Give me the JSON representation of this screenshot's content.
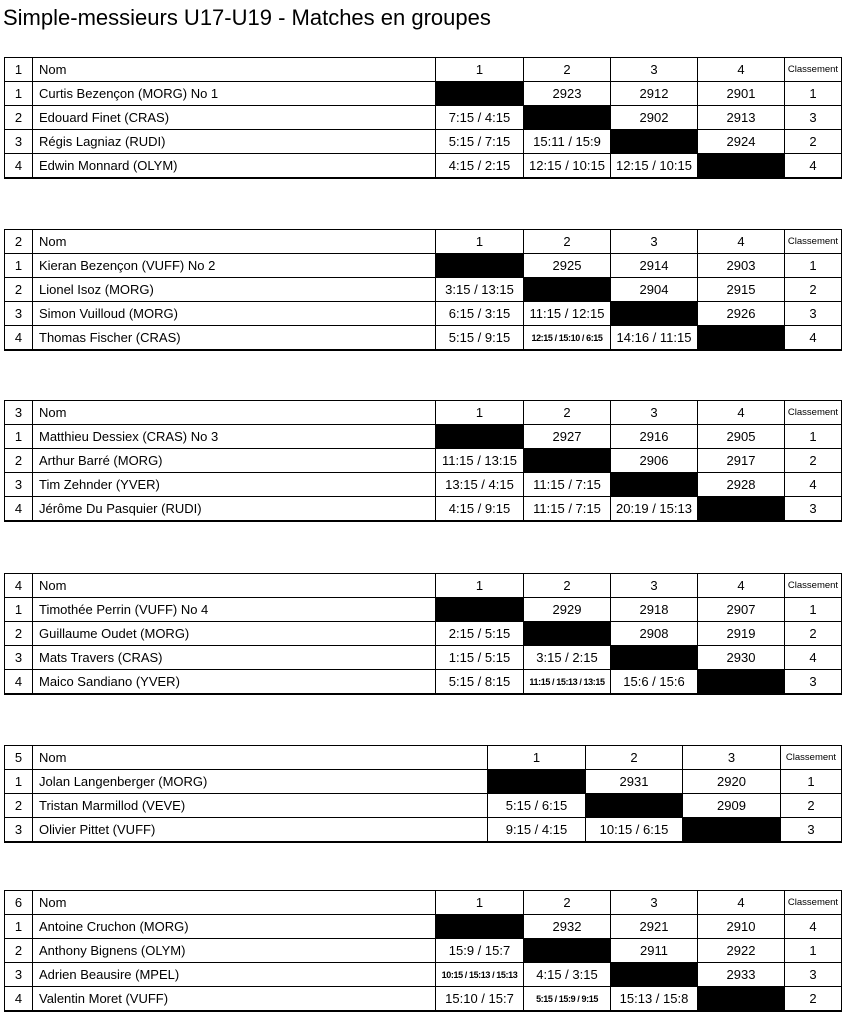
{
  "title": "Simple-messieurs U17-U19 - Matches en groupes",
  "header": {
    "nom": "Nom",
    "classement": "Classement"
  },
  "groups": [
    {
      "group_no": "1",
      "match_cols": [
        "1",
        "2",
        "3",
        "4"
      ],
      "rows": [
        {
          "pos": "1",
          "name": "Curtis Bezençon (MORG) No 1",
          "results": [
            {
              "black": true
            },
            {
              "v": "2923"
            },
            {
              "v": "2912"
            },
            {
              "v": "2901"
            }
          ],
          "classement": "1"
        },
        {
          "pos": "2",
          "name": "Edouard Finet (CRAS)",
          "results": [
            {
              "v": "7:15 / 4:15"
            },
            {
              "black": true
            },
            {
              "v": "2902"
            },
            {
              "v": "2913"
            }
          ],
          "classement": "3"
        },
        {
          "pos": "3",
          "name": "Régis Lagniaz (RUDI)",
          "results": [
            {
              "v": "5:15 / 7:15"
            },
            {
              "v": "15:11 / 15:9"
            },
            {
              "black": true
            },
            {
              "v": "2924"
            }
          ],
          "classement": "2"
        },
        {
          "pos": "4",
          "name": "Edwin Monnard (OLYM)",
          "results": [
            {
              "v": "4:15 / 2:15"
            },
            {
              "v": "12:15 / 10:15"
            },
            {
              "v": "12:15 / 10:15"
            },
            {
              "black": true
            }
          ],
          "classement": "4"
        }
      ]
    },
    {
      "group_no": "2",
      "match_cols": [
        "1",
        "2",
        "3",
        "4"
      ],
      "rows": [
        {
          "pos": "1",
          "name": "Kieran Bezençon (VUFF) No 2",
          "results": [
            {
              "black": true
            },
            {
              "v": "2925"
            },
            {
              "v": "2914"
            },
            {
              "v": "2903"
            }
          ],
          "classement": "1"
        },
        {
          "pos": "2",
          "name": "Lionel Isoz (MORG)",
          "results": [
            {
              "v": "3:15 / 13:15"
            },
            {
              "black": true
            },
            {
              "v": "2904"
            },
            {
              "v": "2915"
            }
          ],
          "classement": "2"
        },
        {
          "pos": "3",
          "name": "Simon Vuilloud (MORG)",
          "results": [
            {
              "v": "6:15 / 3:15"
            },
            {
              "v": "11:15 / 12:15"
            },
            {
              "black": true
            },
            {
              "v": "2926"
            }
          ],
          "classement": "3"
        },
        {
          "pos": "4",
          "name": "Thomas Fischer (CRAS)",
          "results": [
            {
              "v": "5:15 / 9:15"
            },
            {
              "v": "12:15 / 15:10 / 6:15",
              "small": true
            },
            {
              "v": "14:16 / 11:15"
            },
            {
              "black": true
            }
          ],
          "classement": "4"
        }
      ]
    },
    {
      "group_no": "3",
      "match_cols": [
        "1",
        "2",
        "3",
        "4"
      ],
      "rows": [
        {
          "pos": "1",
          "name": "Matthieu Dessiex (CRAS) No 3",
          "results": [
            {
              "black": true
            },
            {
              "v": "2927"
            },
            {
              "v": "2916"
            },
            {
              "v": "2905"
            }
          ],
          "classement": "1"
        },
        {
          "pos": "2",
          "name": "Arthur Barré (MORG)",
          "results": [
            {
              "v": "11:15 / 13:15"
            },
            {
              "black": true
            },
            {
              "v": "2906"
            },
            {
              "v": "2917"
            }
          ],
          "classement": "2"
        },
        {
          "pos": "3",
          "name": "Tim Zehnder (YVER)",
          "results": [
            {
              "v": "13:15 / 4:15"
            },
            {
              "v": "11:15 / 7:15"
            },
            {
              "black": true
            },
            {
              "v": "2928"
            }
          ],
          "classement": "4"
        },
        {
          "pos": "4",
          "name": "Jérôme Du Pasquier (RUDI)",
          "results": [
            {
              "v": "4:15 / 9:15"
            },
            {
              "v": "11:15 / 7:15"
            },
            {
              "v": "20:19 / 15:13"
            },
            {
              "black": true
            }
          ],
          "classement": "3"
        }
      ]
    },
    {
      "group_no": "4",
      "match_cols": [
        "1",
        "2",
        "3",
        "4"
      ],
      "rows": [
        {
          "pos": "1",
          "name": "Timothée Perrin (VUFF) No 4",
          "results": [
            {
              "black": true
            },
            {
              "v": "2929"
            },
            {
              "v": "2918"
            },
            {
              "v": "2907"
            }
          ],
          "classement": "1"
        },
        {
          "pos": "2",
          "name": "Guillaume Oudet (MORG)",
          "results": [
            {
              "v": "2:15 / 5:15"
            },
            {
              "black": true
            },
            {
              "v": "2908"
            },
            {
              "v": "2919"
            }
          ],
          "classement": "2"
        },
        {
          "pos": "3",
          "name": "Mats Travers (CRAS)",
          "results": [
            {
              "v": "1:15 / 5:15"
            },
            {
              "v": "3:15 / 2:15"
            },
            {
              "black": true
            },
            {
              "v": "2930"
            }
          ],
          "classement": "4"
        },
        {
          "pos": "4",
          "name": "Maico Sandiano (YVER)",
          "results": [
            {
              "v": "5:15 / 8:15"
            },
            {
              "v": "11:15 / 15:13 / 13:15",
              "small": true
            },
            {
              "v": "15:6 / 15:6"
            },
            {
              "black": true
            }
          ],
          "classement": "3"
        }
      ]
    },
    {
      "group_no": "5",
      "match_cols": [
        "1",
        "2",
        "3"
      ],
      "rows": [
        {
          "pos": "1",
          "name": "Jolan Langenberger (MORG)",
          "results": [
            {
              "black": true
            },
            {
              "v": "2931"
            },
            {
              "v": "2920"
            }
          ],
          "classement": "1"
        },
        {
          "pos": "2",
          "name": "Tristan Marmillod (VEVE)",
          "results": [
            {
              "v": "5:15 / 6:15"
            },
            {
              "black": true
            },
            {
              "v": "2909"
            }
          ],
          "classement": "2"
        },
        {
          "pos": "3",
          "name": "Olivier Pittet (VUFF)",
          "results": [
            {
              "v": "9:15 / 4:15"
            },
            {
              "v": "10:15 / 6:15"
            },
            {
              "black": true
            }
          ],
          "classement": "3"
        }
      ]
    },
    {
      "group_no": "6",
      "match_cols": [
        "1",
        "2",
        "3",
        "4"
      ],
      "rows": [
        {
          "pos": "1",
          "name": "Antoine Cruchon (MORG)",
          "results": [
            {
              "black": true
            },
            {
              "v": "2932"
            },
            {
              "v": "2921"
            },
            {
              "v": "2910"
            }
          ],
          "classement": "4"
        },
        {
          "pos": "2",
          "name": "Anthony Bignens (OLYM)",
          "results": [
            {
              "v": "15:9 / 15:7"
            },
            {
              "black": true
            },
            {
              "v": "2911"
            },
            {
              "v": "2922"
            }
          ],
          "classement": "1"
        },
        {
          "pos": "3",
          "name": "Adrien Beausire (MPEL)",
          "results": [
            {
              "v": "10:15 / 15:13 / 15:13",
              "small": true
            },
            {
              "v": "4:15 / 3:15"
            },
            {
              "black": true
            },
            {
              "v": "2933"
            }
          ],
          "classement": "3"
        },
        {
          "pos": "4",
          "name": "Valentin Moret (VUFF)",
          "results": [
            {
              "v": "15:10 / 15:7"
            },
            {
              "v": "5:15 / 15:9 / 9:15",
              "small": true
            },
            {
              "v": "15:13 / 15:8"
            },
            {
              "black": true
            }
          ],
          "classement": "2"
        }
      ]
    }
  ]
}
